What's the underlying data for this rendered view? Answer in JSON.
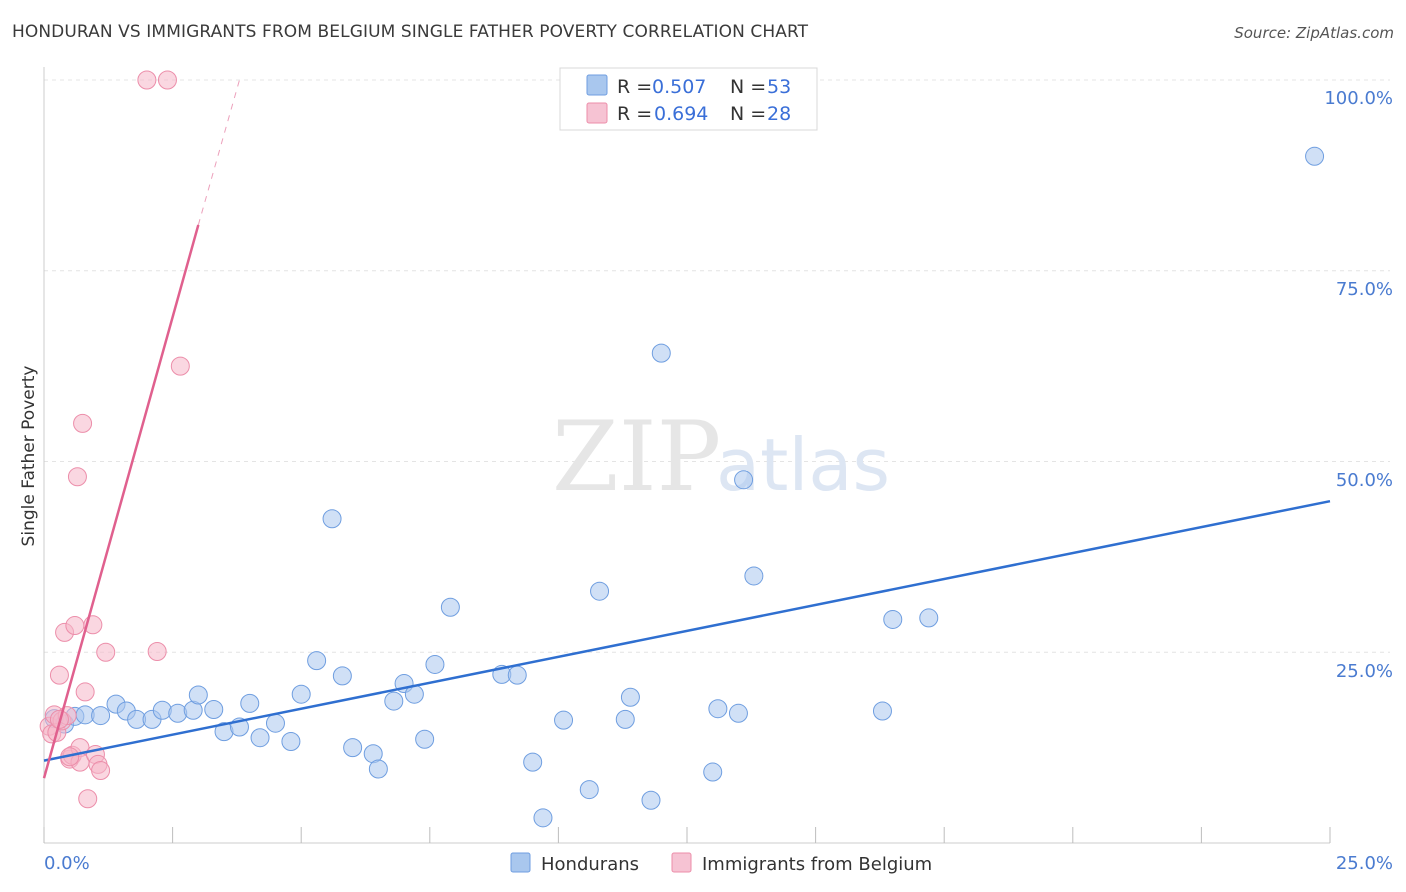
{
  "title": "HONDURAN VS IMMIGRANTS FROM BELGIUM SINGLE FATHER POVERTY CORRELATION CHART",
  "source_label": "Source: ZipAtlas.com",
  "watermark": {
    "zip": "ZIP",
    "atlas": "atlas"
  },
  "colors": {
    "blue_fill": "#a9c7ee",
    "blue_stroke": "#6f9ee0",
    "blue_line": "#2f6fd0",
    "pink_fill": "#f6b7c9",
    "pink_stroke": "#ec8eaa",
    "pink_line": "#e0608e",
    "grid": "#e4e4e4",
    "axis_text": "#4a7bd0"
  },
  "legend": {
    "r_label": "R =",
    "n_label": "N =",
    "rows": [
      {
        "series": "Hondurans",
        "r": "0.507",
        "n": "53"
      },
      {
        "series": "Immigrants from Belgium",
        "r": "0.694",
        "n": "28"
      }
    ]
  },
  "chart_data": {
    "type": "scatter",
    "title": "HONDURAN VS IMMIGRANTS FROM BELGIUM SINGLE FATHER POVERTY CORRELATION CHART",
    "ylabel": "Single Father Poverty",
    "xlabel": "",
    "x_tick_labels": [
      "0.0%",
      "25.0%"
    ],
    "y_tick_labels": [
      "100.0%",
      "75.0%",
      "50.0%",
      "25.0%"
    ],
    "xlim": [
      0,
      25
    ],
    "ylim": [
      0,
      102
    ],
    "y_ticks": [
      100,
      75,
      50,
      25
    ],
    "grid": true,
    "series": [
      {
        "name": "Hondurans",
        "color": "blue",
        "trend": {
          "x": [
            0,
            25
          ],
          "y": [
            10.8,
            44.8
          ]
        },
        "points": [
          [
            0.2,
            16.3
          ],
          [
            0.4,
            15.6
          ],
          [
            0.6,
            16.6
          ],
          [
            0.8,
            16.8
          ],
          [
            1.1,
            16.7
          ],
          [
            1.4,
            18.2
          ],
          [
            1.6,
            17.3
          ],
          [
            1.8,
            16.2
          ],
          [
            2.1,
            16.2
          ],
          [
            2.3,
            17.4
          ],
          [
            2.6,
            17.0
          ],
          [
            2.9,
            17.4
          ],
          [
            3.0,
            19.4
          ],
          [
            3.3,
            17.5
          ],
          [
            3.5,
            14.6
          ],
          [
            3.8,
            15.2
          ],
          [
            4.0,
            18.3
          ],
          [
            4.2,
            13.8
          ],
          [
            4.5,
            15.7
          ],
          [
            4.8,
            13.3
          ],
          [
            5.0,
            19.5
          ],
          [
            5.3,
            23.9
          ],
          [
            5.6,
            42.5
          ],
          [
            5.8,
            21.9
          ],
          [
            6.0,
            12.5
          ],
          [
            6.4,
            11.7
          ],
          [
            6.5,
            9.7
          ],
          [
            6.8,
            18.6
          ],
          [
            7.0,
            20.9
          ],
          [
            7.2,
            19.5
          ],
          [
            7.4,
            13.6
          ],
          [
            7.6,
            23.4
          ],
          [
            7.9,
            30.9
          ],
          [
            8.9,
            22.1
          ],
          [
            9.2,
            22.0
          ],
          [
            9.5,
            10.6
          ],
          [
            9.7,
            3.3
          ],
          [
            10.1,
            16.1
          ],
          [
            10.6,
            7.0
          ],
          [
            10.8,
            33.0
          ],
          [
            11.3,
            16.2
          ],
          [
            11.4,
            19.1
          ],
          [
            11.8,
            5.6
          ],
          [
            12.0,
            64.2
          ],
          [
            13.0,
            9.3
          ],
          [
            13.1,
            17.6
          ],
          [
            13.5,
            17.0
          ],
          [
            13.6,
            47.6
          ],
          [
            13.8,
            35.0
          ],
          [
            16.3,
            17.3
          ],
          [
            16.5,
            29.3
          ],
          [
            17.2,
            29.5
          ],
          [
            24.7,
            90.0
          ]
        ]
      },
      {
        "name": "Immigrants from Belgium",
        "color": "pink",
        "trend": {
          "x": [
            0,
            3.0
          ],
          "y": [
            8.5,
            81.0
          ],
          "dash_to": [
            3.8,
            100.0
          ]
        },
        "points": [
          [
            0.1,
            15.3
          ],
          [
            0.15,
            14.3
          ],
          [
            0.2,
            16.8
          ],
          [
            0.25,
            14.5
          ],
          [
            0.3,
            22.0
          ],
          [
            0.35,
            16.0
          ],
          [
            0.4,
            27.6
          ],
          [
            0.45,
            16.7
          ],
          [
            0.5,
            11.0
          ],
          [
            0.55,
            11.5
          ],
          [
            0.6,
            28.5
          ],
          [
            0.65,
            48.0
          ],
          [
            0.7,
            12.5
          ],
          [
            0.7,
            10.6
          ],
          [
            0.75,
            55.0
          ],
          [
            0.8,
            19.8
          ],
          [
            0.85,
            5.8
          ],
          [
            0.95,
            28.6
          ],
          [
            1.0,
            11.6
          ],
          [
            1.05,
            10.3
          ],
          [
            1.1,
            9.5
          ],
          [
            1.2,
            25.0
          ],
          [
            2.0,
            100.0
          ],
          [
            2.2,
            25.1
          ],
          [
            2.4,
            100.0
          ],
          [
            2.65,
            62.5
          ],
          [
            0.3,
            16.2
          ],
          [
            0.5,
            11.3
          ]
        ]
      }
    ]
  },
  "bottom_legend": [
    "Hondurans",
    "Immigrants from Belgium"
  ]
}
